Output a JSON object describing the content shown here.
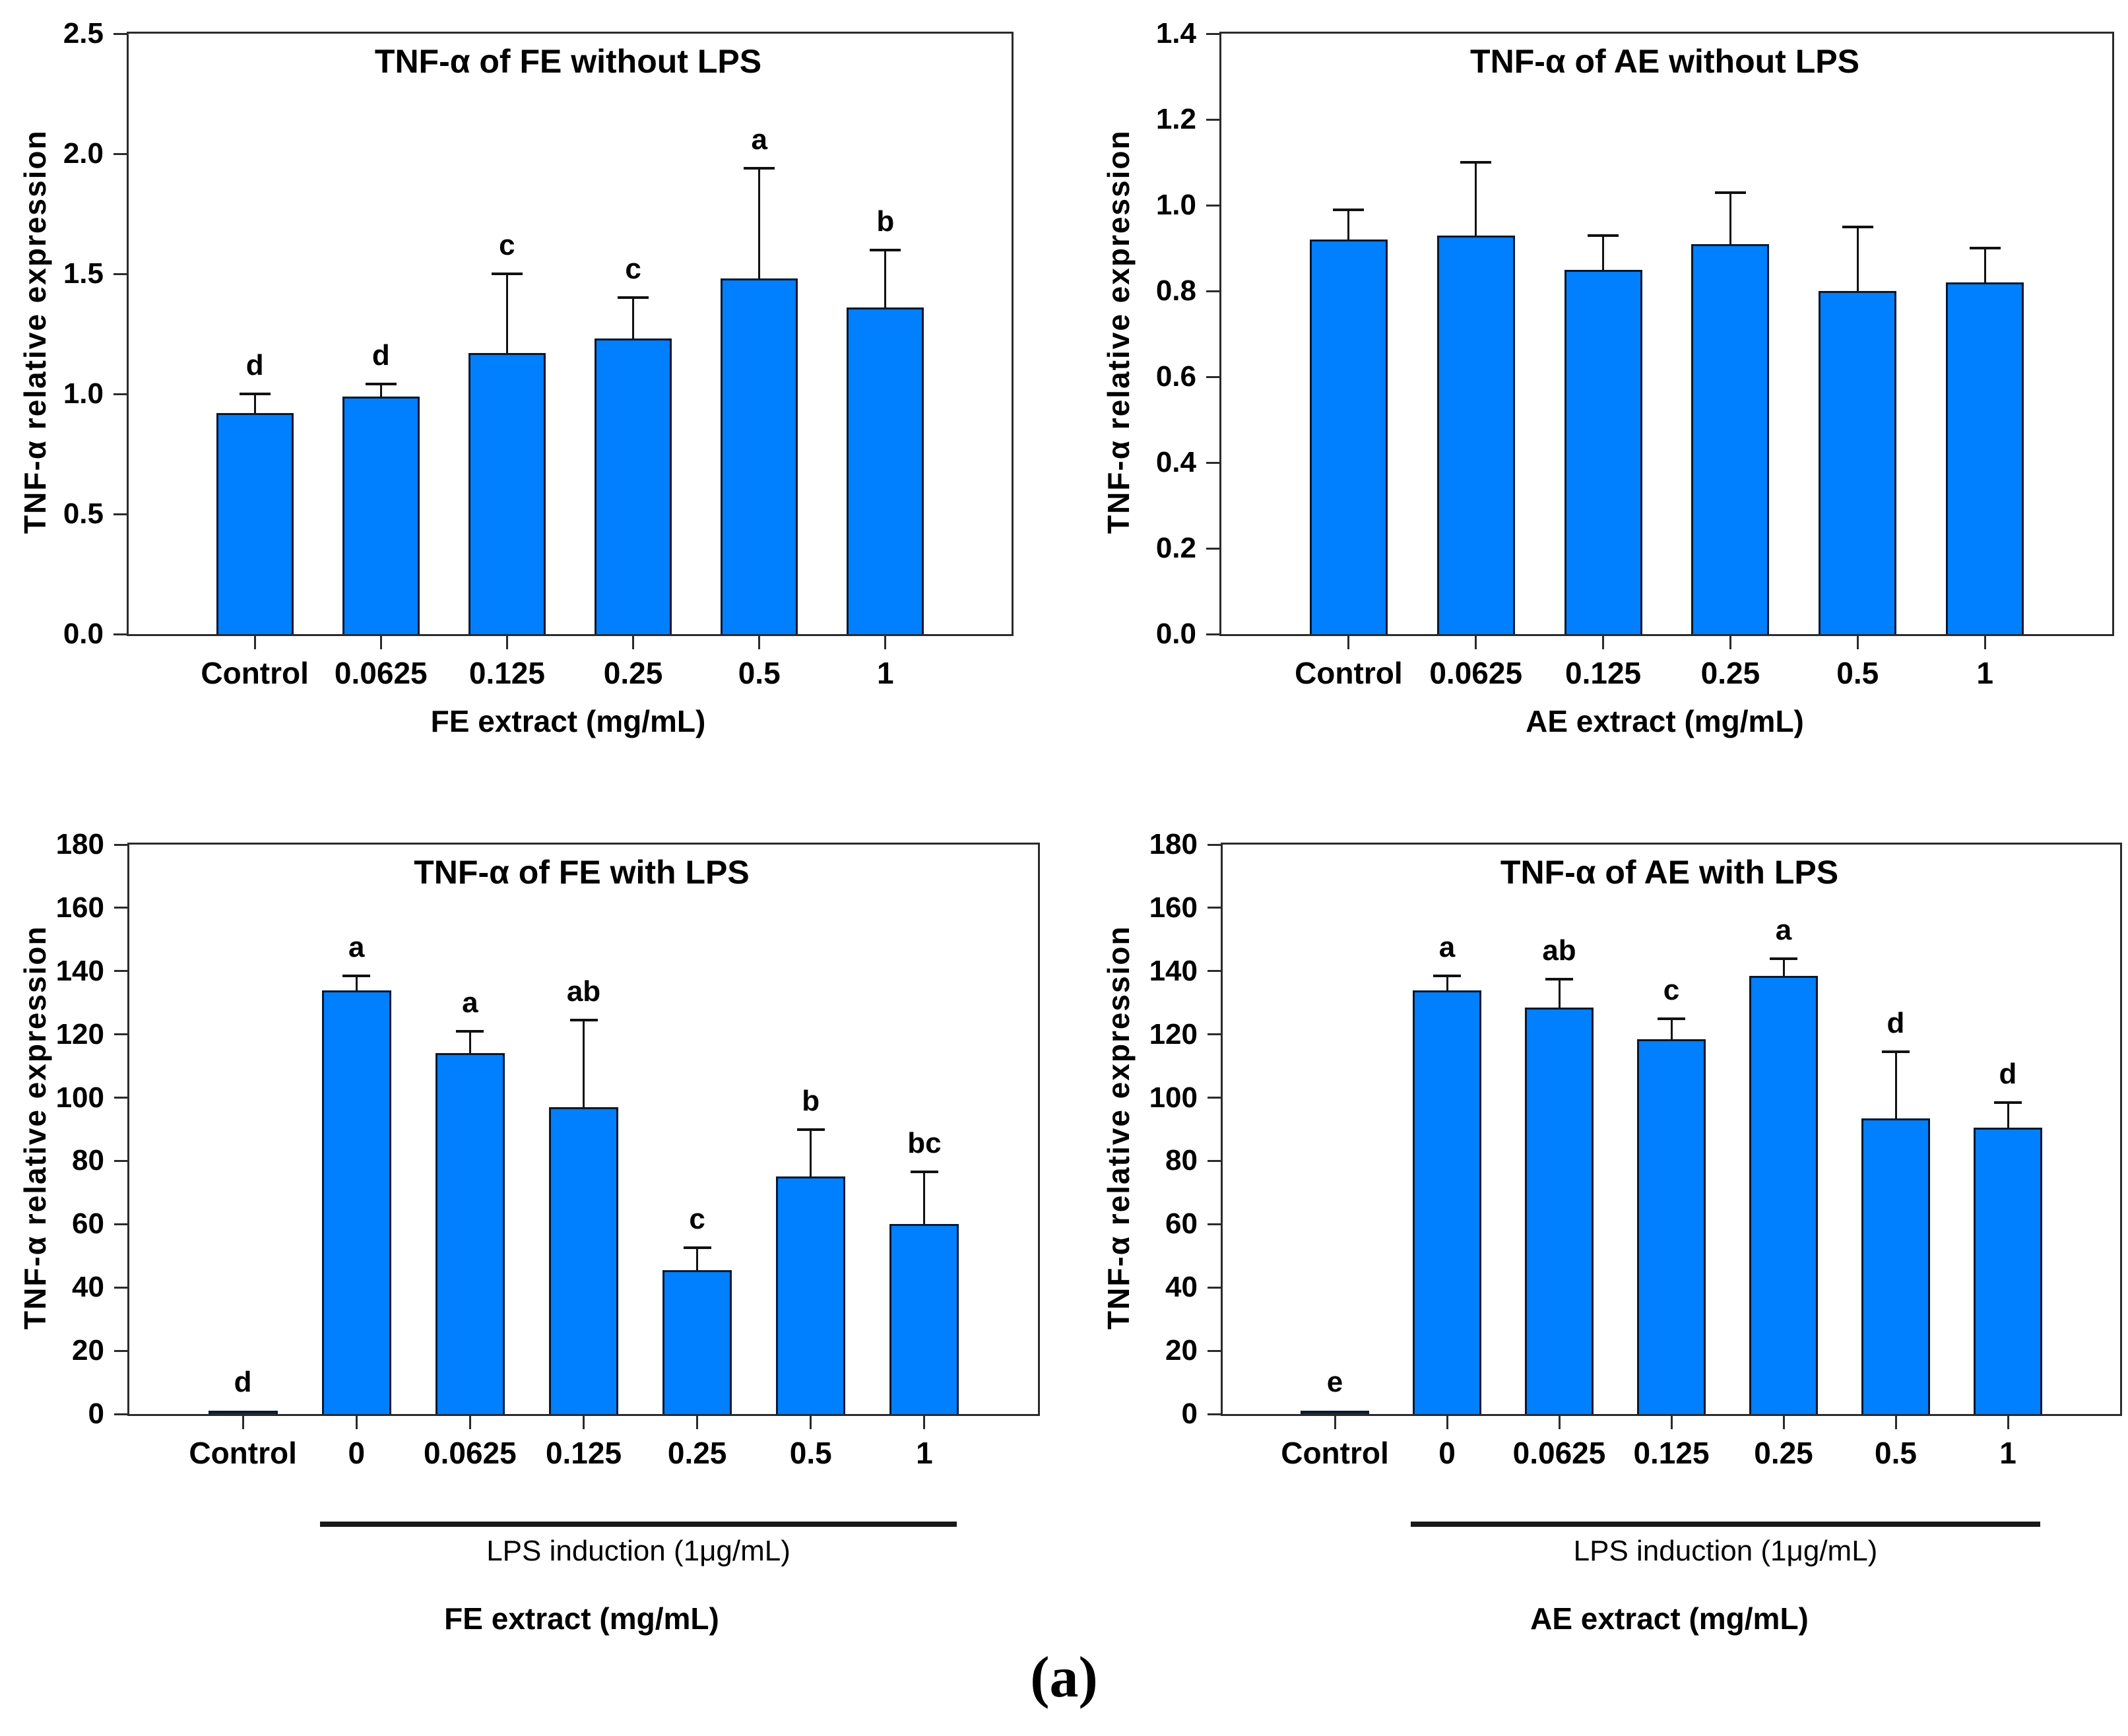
{
  "figure_label": "(a)",
  "colors": {
    "bar_fill": "#007FFF",
    "bar_border": "#081830",
    "control_bar_fill": "#16253b",
    "axis_frame": "#2b2b2b",
    "error_bar": "#111111"
  },
  "chart_data": [
    {
      "id": "fe-without-lps",
      "type": "bar",
      "title": "TNF-α of FE without LPS",
      "xlabel": "FE extract (mg/mL)",
      "ylabel": "TNF-α relative expression",
      "ylim": [
        0,
        2.5
      ],
      "ytick_step": 0.5,
      "ytick_decimals": 1,
      "grid": false,
      "categories": [
        "Control",
        "0.0625",
        "0.125",
        "0.25",
        "0.5",
        "1"
      ],
      "values": [
        0.92,
        0.99,
        1.17,
        1.23,
        1.48,
        1.36
      ],
      "errors": [
        0.08,
        0.05,
        0.33,
        0.17,
        0.46,
        0.24
      ],
      "letters": [
        "d",
        "d",
        "c",
        "c",
        "a",
        "b"
      ],
      "control_dark_index": null,
      "lps_label": null
    },
    {
      "id": "ae-without-lps",
      "type": "bar",
      "title": "TNF-α of AE without LPS",
      "xlabel": "AE extract (mg/mL)",
      "ylabel": "TNF-α relative expression",
      "ylim": [
        0,
        1.4
      ],
      "ytick_step": 0.2,
      "ytick_decimals": 1,
      "grid": false,
      "categories": [
        "Control",
        "0.0625",
        "0.125",
        "0.25",
        "0.5",
        "1"
      ],
      "values": [
        0.92,
        0.93,
        0.85,
        0.91,
        0.8,
        0.82
      ],
      "errors": [
        0.07,
        0.17,
        0.08,
        0.12,
        0.15,
        0.08
      ],
      "letters": [
        "",
        "",
        "",
        "",
        "",
        ""
      ],
      "control_dark_index": null,
      "lps_label": null
    },
    {
      "id": "fe-with-lps",
      "type": "bar",
      "title": "TNF-α of FE with LPS",
      "xlabel": "FE extract (mg/mL)",
      "ylabel": "TNF-α relative expression",
      "ylim": [
        0,
        180
      ],
      "ytick_step": 20,
      "ytick_decimals": 0,
      "grid": false,
      "categories": [
        "Control",
        "0",
        "0.0625",
        "0.125",
        "0.25",
        "0.5",
        "1"
      ],
      "values": [
        1,
        134,
        114,
        97,
        45.5,
        75,
        60
      ],
      "errors": [
        0,
        4.5,
        7,
        27.5,
        7,
        15,
        16.5
      ],
      "letters": [
        "d",
        "a",
        "a",
        "ab",
        "c",
        "b",
        "bc"
      ],
      "control_dark_index": 0,
      "lps_label": "LPS induction (1μg/mL)"
    },
    {
      "id": "ae-with-lps",
      "type": "bar",
      "title": "TNF-α of AE with LPS",
      "xlabel": "AE extract (mg/mL)",
      "ylabel": "TNF-α relative expression",
      "ylim": [
        0,
        180
      ],
      "ytick_step": 20,
      "ytick_decimals": 0,
      "grid": false,
      "categories": [
        "Control",
        "0",
        "0.0625",
        "0.125",
        "0.25",
        "0.5",
        "1"
      ],
      "values": [
        1,
        134,
        128.5,
        118.5,
        138.5,
        93.5,
        90.5
      ],
      "errors": [
        0,
        4.5,
        9,
        6.5,
        5.5,
        21,
        8
      ],
      "letters": [
        "e",
        "a",
        "ab",
        "c",
        "a",
        "d",
        "d"
      ],
      "control_dark_index": 0,
      "lps_label": "LPS induction (1μg/mL)"
    }
  ]
}
